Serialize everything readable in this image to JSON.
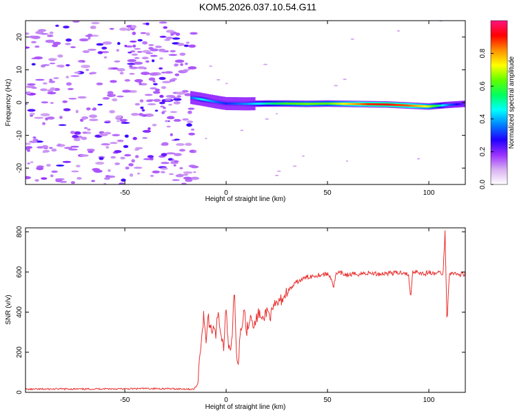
{
  "title": "KOM5.2026.037.10.54.G11",
  "chart_data": [
    {
      "type": "heatmap",
      "xlabel": "Height of straight line (km)",
      "ylabel": "Frequency (Hz)",
      "xlim": [
        -99,
        118
      ],
      "ylim": [
        -25,
        25
      ],
      "xticks": [
        -50,
        0,
        50,
        100
      ],
      "yticks": [
        -20,
        -10,
        0,
        10,
        20
      ],
      "colorbar": {
        "label": "Normalized spectral amplitude",
        "range": [
          0,
          1
        ],
        "ticks": [
          0.0,
          0.2,
          0.4,
          0.6,
          0.8
        ],
        "colors": [
          "#ffffff",
          "#d8b0f0",
          "#9a30ff",
          "#2000ff",
          "#0080ff",
          "#00ffff",
          "#00ff60",
          "#60ff00",
          "#ffff00",
          "#ff9000",
          "#ff0000",
          "#ff1480"
        ]
      },
      "ridge": {
        "x": [
          -17,
          -12,
          -5,
          0,
          10,
          20,
          30,
          40,
          50,
          60,
          70,
          80,
          90,
          100,
          110,
          118
        ],
        "freq": [
          1.5,
          1.0,
          0.2,
          -0.3,
          -0.4,
          -0.3,
          -0.3,
          -0.4,
          -0.3,
          -0.4,
          -0.5,
          -0.6,
          -0.9,
          -1.2,
          -0.7,
          -0.4
        ],
        "amp": [
          0.35,
          0.45,
          0.35,
          0.3,
          0.38,
          0.5,
          0.6,
          0.65,
          0.62,
          0.75,
          0.88,
          0.9,
          0.85,
          0.7,
          0.35,
          0.2
        ]
      }
    },
    {
      "type": "line",
      "xlabel": "Height of straight line (km)",
      "ylabel": "SNR (v/v)",
      "xlim": [
        -99,
        118
      ],
      "ylim": [
        0,
        820
      ],
      "xticks": [
        -50,
        0,
        50,
        100
      ],
      "yticks": [
        0,
        200,
        400,
        600,
        800
      ],
      "series": [
        {
          "name": "SNR",
          "color": "#e8302f",
          "x": [
            -99,
            -90,
            -80,
            -70,
            -60,
            -50,
            -40,
            -30,
            -20,
            -16,
            -14,
            -13,
            -12,
            -11,
            -10,
            -9,
            -8,
            -7,
            -6,
            -5,
            -4,
            -3,
            -2,
            -1,
            0,
            1,
            2,
            3,
            4,
            5,
            6,
            7,
            8,
            9,
            10,
            12,
            14,
            16,
            18,
            20,
            22,
            24,
            26,
            28,
            30,
            32,
            35,
            40,
            45,
            50,
            52,
            53,
            54,
            56,
            60,
            65,
            70,
            75,
            80,
            85,
            88,
            90,
            91,
            92,
            94,
            96,
            98,
            100,
            102,
            104,
            106,
            107,
            108,
            109,
            110,
            112,
            114,
            116,
            118
          ],
          "y": [
            15,
            16,
            17,
            16,
            18,
            17,
            19,
            18,
            17,
            15,
            40,
            200,
            280,
            390,
            240,
            380,
            330,
            310,
            340,
            280,
            420,
            320,
            250,
            230,
            430,
            250,
            210,
            300,
            520,
            200,
            150,
            310,
            360,
            420,
            300,
            390,
            330,
            400,
            350,
            410,
            380,
            430,
            450,
            470,
            500,
            520,
            550,
            575,
            585,
            590,
            570,
            520,
            585,
            595,
            585,
            590,
            595,
            590,
            595,
            595,
            600,
            580,
            470,
            600,
            605,
            595,
            590,
            600,
            590,
            595,
            600,
            580,
            800,
            330,
            590,
            600,
            585,
            590,
            590
          ]
        }
      ]
    }
  ]
}
